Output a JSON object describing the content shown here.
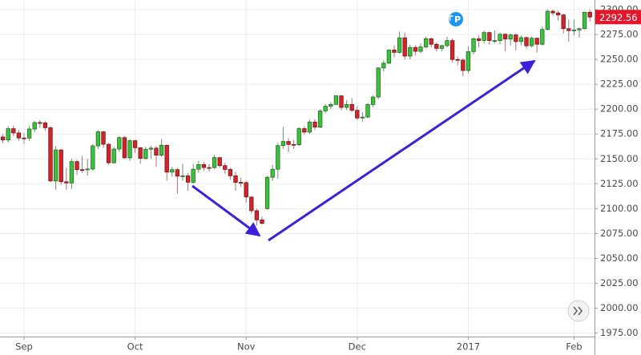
{
  "chart_data": {
    "type": "candlestick",
    "event_badge": "P",
    "up_color": "#3cc13b",
    "down_color": "#d8222a",
    "grid": true,
    "categories": [
      null,
      null,
      null,
      null,
      "Sep",
      null,
      null,
      null,
      null,
      null,
      null,
      null,
      null,
      null,
      null,
      null,
      null,
      null,
      null,
      null,
      null,
      null,
      null,
      null,
      null,
      "Oct",
      null,
      null,
      null,
      null,
      null,
      null,
      null,
      null,
      null,
      null,
      null,
      null,
      null,
      null,
      null,
      null,
      null,
      null,
      null,
      null,
      "Nov",
      null,
      null,
      null,
      null,
      null,
      null,
      null,
      null,
      null,
      null,
      null,
      null,
      null,
      null,
      null,
      null,
      null,
      null,
      null,
      null,
      "Dec",
      null,
      null,
      null,
      null,
      null,
      null,
      null,
      null,
      null,
      null,
      null,
      null,
      null,
      null,
      null,
      null,
      null,
      null,
      null,
      null,
      "2017",
      null,
      null,
      null,
      null,
      null,
      null,
      null,
      null,
      null,
      null,
      null,
      null,
      null,
      null,
      null,
      null,
      null,
      null,
      null,
      "Feb",
      null,
      null,
      null
    ],
    "open": [
      2172.0,
      2169.0,
      2180.4,
      2176.1,
      2171.0,
      2170.9,
      2180.0,
      2186.5,
      2186.2,
      2181.3,
      2127.8,
      2159.0,
      2127.0,
      2125.8,
      2147.3,
      2139.2,
      2139.1,
      2139.8,
      2163.1,
      2177.2,
      2164.7,
      2146.1,
      2159.9,
      2171.4,
      2151.1,
      2168.3,
      2161.2,
      2150.5,
      2159.7,
      2160.8,
      2153.7,
      2163.7,
      2136.7,
      2139.2,
      2132.6,
      2133.0,
      2126.5,
      2139.6,
      2144.3,
      2141.3,
      2141.2,
      2151.3,
      2143.2,
      2139.4,
      2133.0,
      2126.4,
      2126.2,
      2111.7,
      2097.9,
      2088.7,
      2100.0,
      2131.5,
      2139.6,
      2163.3,
      2167.5,
      2164.5,
      2164.2,
      2180.4,
      2176.9,
      2187.1,
      2181.9,
      2198.2,
      2202.9,
      2204.7,
      2213.4,
      2201.7,
      2204.7,
      2198.8,
      2191.1,
      2192.0,
      2204.7,
      2212.2,
      2241.4,
      2246.2,
      2259.5,
      2257.0,
      2271.7,
      2253.3,
      2262.0,
      2258.1,
      2262.5,
      2270.8,
      2265.2,
      2261.0,
      2263.8,
      2268.9,
      2249.9,
      2249.3,
      2238.8,
      2257.8,
      2270.8,
      2269.0,
      2277.0,
      2268.9,
      2268.9,
      2275.3,
      2270.4,
      2274.6,
      2267.9,
      2271.9,
      2263.7,
      2271.3,
      2265.2,
      2280.1,
      2298.4,
      2296.7,
      2294.7,
      2280.9,
      2278.9,
      2279.6,
      2280.9,
      2297.4
    ],
    "high": [
      2175.0,
      2183.0,
      2183.5,
      2179.0,
      2176.0,
      2183.0,
      2188.0,
      2189.0,
      2188.0,
      2183.0,
      2163.0,
      2160.0,
      2141.0,
      2150.0,
      2149.0,
      2153.0,
      2150.0,
      2165.0,
      2179.0,
      2178.0,
      2166.0,
      2162.0,
      2173.0,
      2173.0,
      2170.0,
      2169.0,
      2162.0,
      2162.0,
      2163.0,
      2163.0,
      2170.0,
      2164.0,
      2142.0,
      2141.0,
      2145.0,
      2136.0,
      2145.0,
      2148.0,
      2147.0,
      2145.0,
      2154.0,
      2152.0,
      2146.0,
      2141.0,
      2137.0,
      2131.0,
      2128.0,
      2112.0,
      2100.0,
      2092.0,
      2133.0,
      2144.0,
      2166.0,
      2182.0,
      2171.0,
      2169.0,
      2182.0,
      2183.0,
      2189.0,
      2190.0,
      2200.0,
      2205.0,
      2207.0,
      2214.0,
      2214.0,
      2209.0,
      2211.0,
      2203.0,
      2197.0,
      2206.0,
      2214.0,
      2242.0,
      2249.0,
      2260.0,
      2264.0,
      2278.0,
      2277.0,
      2265.0,
      2264.0,
      2266.0,
      2273.0,
      2272.0,
      2267.0,
      2265.0,
      2273.0,
      2271.0,
      2253.0,
      2251.0,
      2263.0,
      2272.0,
      2274.0,
      2279.0,
      2278.0,
      2279.0,
      2277.0,
      2276.0,
      2276.0,
      2276.0,
      2274.0,
      2273.0,
      2273.0,
      2272.0,
      2283.0,
      2300.0,
      2300.0,
      2299.0,
      2296.0,
      2290.0,
      2290.0,
      2282.0,
      2298.0,
      2300.0
    ],
    "low": [
      2166.0,
      2166.5,
      2173.0,
      2168.0,
      2165.0,
      2168.0,
      2177.0,
      2181.0,
      2178.0,
      2127.0,
      2119.0,
      2124.0,
      2119.0,
      2120.0,
      2134.0,
      2136.0,
      2133.0,
      2138.0,
      2160.0,
      2161.0,
      2144.0,
      2145.0,
      2157.0,
      2150.0,
      2148.0,
      2156.0,
      2145.0,
      2149.0,
      2150.0,
      2142.0,
      2152.0,
      2128.0,
      2132.0,
      2115.0,
      2128.0,
      2118.0,
      2125.0,
      2136.0,
      2138.0,
      2137.0,
      2140.0,
      2141.0,
      2135.0,
      2129.0,
      2118.0,
      2122.0,
      2106.0,
      2095.0,
      2083.0,
      2084.0,
      2099.0,
      2128.0,
      2130.0,
      2160.0,
      2157.0,
      2160.0,
      2163.0,
      2174.0,
      2175.0,
      2179.0,
      2181.0,
      2196.0,
      2200.0,
      2204.0,
      2199.0,
      2199.0,
      2197.0,
      2189.0,
      2187.0,
      2191.0,
      2202.0,
      2210.0,
      2238.0,
      2245.0,
      2252.0,
      2256.0,
      2250.0,
      2250.0,
      2254.0,
      2256.0,
      2261.0,
      2262.0,
      2258.0,
      2258.0,
      2262.0,
      2247.0,
      2244.0,
      2233.0,
      2236.0,
      2255.0,
      2262.0,
      2266.0,
      2265.0,
      2266.0,
      2265.0,
      2258.0,
      2264.0,
      2259.0,
      2264.0,
      2261.0,
      2262.0,
      2257.0,
      2264.0,
      2279.0,
      2294.0,
      2289.0,
      2276.0,
      2268.0,
      2274.0,
      2272.0,
      2280.0,
      2288.0
    ],
    "close": [
      2169.0,
      2180.4,
      2176.1,
      2171.0,
      2170.9,
      2180.0,
      2186.5,
      2186.2,
      2181.3,
      2127.8,
      2159.0,
      2127.0,
      2125.8,
      2147.3,
      2139.2,
      2139.1,
      2139.8,
      2163.1,
      2177.2,
      2164.7,
      2146.1,
      2159.9,
      2171.4,
      2151.1,
      2168.3,
      2161.2,
      2150.5,
      2159.7,
      2160.8,
      2153.7,
      2163.7,
      2136.7,
      2139.2,
      2132.6,
      2133.0,
      2126.5,
      2139.6,
      2144.3,
      2141.3,
      2141.2,
      2151.3,
      2143.2,
      2139.4,
      2133.0,
      2126.4,
      2126.2,
      2111.7,
      2097.9,
      2088.7,
      2085.2,
      2131.5,
      2139.6,
      2163.3,
      2167.5,
      2164.5,
      2164.2,
      2180.4,
      2176.9,
      2187.1,
      2181.9,
      2198.2,
      2202.9,
      2204.7,
      2213.4,
      2201.7,
      2204.7,
      2198.8,
      2191.1,
      2192.0,
      2204.7,
      2212.2,
      2241.4,
      2246.2,
      2259.5,
      2257.0,
      2271.7,
      2253.3,
      2262.0,
      2258.1,
      2262.5,
      2270.8,
      2265.2,
      2261.0,
      2263.8,
      2268.9,
      2249.9,
      2249.3,
      2238.8,
      2257.8,
      2270.8,
      2269.0,
      2277.0,
      2268.9,
      2268.9,
      2275.3,
      2270.4,
      2274.6,
      2267.9,
      2271.9,
      2263.7,
      2271.3,
      2265.2,
      2280.1,
      2298.4,
      2296.7,
      2294.7,
      2280.9,
      2278.9,
      2279.6,
      2280.9,
      2297.4,
      2292.56
    ],
    "ylim": [
      1971.4,
      2309.7
    ],
    "yticks": [
      {
        "value": 1975,
        "label": "1975.00"
      },
      {
        "value": 2000,
        "label": "2000.00"
      },
      {
        "value": 2025,
        "label": "2025.00"
      },
      {
        "value": 2050,
        "label": "2050.00"
      },
      {
        "value": 2075,
        "label": "2075.00"
      },
      {
        "value": 2100,
        "label": "2100.00"
      },
      {
        "value": 2125,
        "label": "2125.00"
      },
      {
        "value": 2150,
        "label": "2150.00"
      },
      {
        "value": 2175,
        "label": "2175.00"
      },
      {
        "value": 2200,
        "label": "2200.00"
      },
      {
        "value": 2225,
        "label": "2225.00"
      },
      {
        "value": 2250,
        "label": "2250.00"
      },
      {
        "value": 2275,
        "label": "2275.00"
      },
      {
        "value": 2300,
        "label": "2300.00"
      }
    ]
  }
}
